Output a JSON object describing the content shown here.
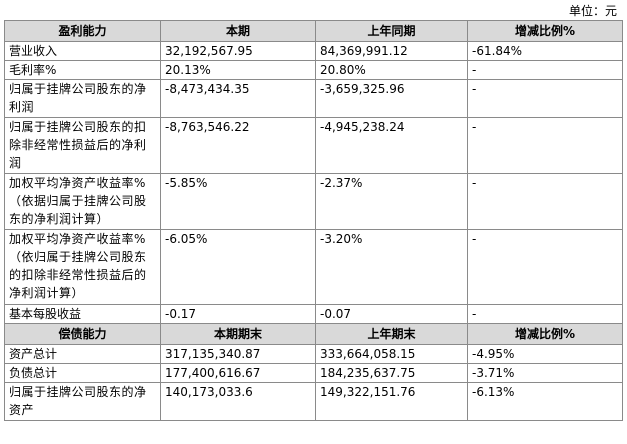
{
  "unit_label": "单位：元",
  "profit_section": {
    "headers": [
      "盈利能力",
      "本期",
      "上年同期",
      "增减比例%"
    ],
    "rows": [
      {
        "label": "营业收入",
        "current": "32,192,567.95",
        "prior": "84,369,991.12",
        "change": "-61.84%"
      },
      {
        "label": "毛利率%",
        "current": "20.13%",
        "prior": "20.80%",
        "change": "-"
      },
      {
        "label": "归属于挂牌公司股东的净利润",
        "current": "-8,473,434.35",
        "prior": "-3,659,325.96",
        "change": "-"
      },
      {
        "label": "归属于挂牌公司股东的扣除非经常性损益后的净利润",
        "current": "-8,763,546.22",
        "prior": "-4,945,238.24",
        "change": "-"
      },
      {
        "label": "加权平均净资产收益率%（依据归属于挂牌公司股东的净利润计算）",
        "current": "-5.85%",
        "prior": "-2.37%",
        "change": "-"
      },
      {
        "label": "加权平均净资产收益率%（依归属于挂牌公司股东的扣除非经常性损益后的净利润计算）",
        "current": "-6.05%",
        "prior": "-3.20%",
        "change": "-"
      },
      {
        "label": "基本每股收益",
        "current": "-0.17",
        "prior": "-0.07",
        "change": "-"
      }
    ]
  },
  "solvency_section": {
    "headers": [
      "偿债能力",
      "本期期末",
      "上年期末",
      "增减比例%"
    ],
    "rows": [
      {
        "label": "资产总计",
        "current": "317,135,340.87",
        "prior": "333,664,058.15",
        "change": "-4.95%"
      },
      {
        "label": "负债总计",
        "current": "177,400,616.67",
        "prior": "184,235,637.75",
        "change": "-3.71%"
      },
      {
        "label": "归属于挂牌公司股东的净资产",
        "current": "140,173,033.6",
        "prior": "149,322,151.76",
        "change": "-6.13%"
      }
    ]
  }
}
